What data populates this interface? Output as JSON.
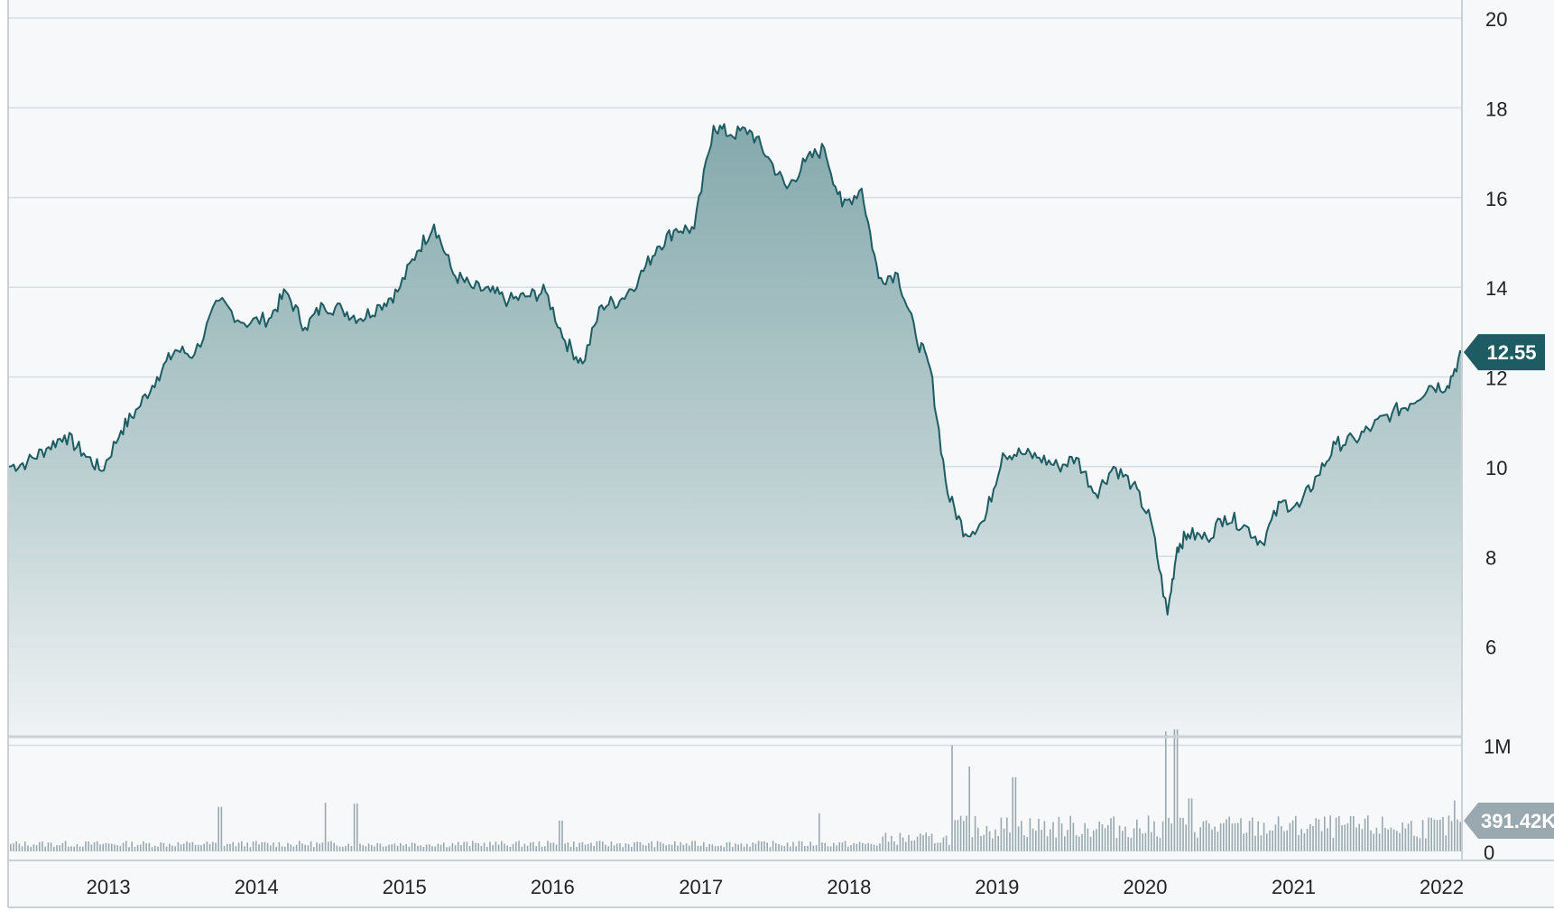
{
  "chart_data": [
    {
      "type": "area",
      "name_hint": "price",
      "title": "",
      "xlabel": "",
      "ylabel": "",
      "ylim": [
        4,
        20
      ],
      "y_ticks": [
        6,
        8,
        10,
        12,
        14,
        16,
        18,
        20
      ],
      "x_ticks": [
        "2013",
        "2014",
        "2015",
        "2016",
        "2017",
        "2018",
        "2019",
        "2020",
        "2021",
        "2022"
      ],
      "x_range": [
        "2012-05-01",
        "2022-02-20"
      ],
      "grid": true,
      "line_color": "#1d5c63",
      "fill_color": "#8fb1b3",
      "last_value_label": "12.55",
      "series": [
        {
          "x": [
            "2012-05-01",
            "2012-06-15",
            "2012-08-01",
            "2012-09-15",
            "2012-11-01",
            "2012-12-15",
            "2013-02-01",
            "2013-03-15",
            "2013-05-01",
            "2013-06-15",
            "2013-08-01",
            "2013-10-01",
            "2013-12-01",
            "2014-02-01",
            "2014-03-15",
            "2014-05-01",
            "2014-06-15",
            "2014-08-01",
            "2014-09-15",
            "2014-11-01",
            "2014-12-15",
            "2015-02-01",
            "2015-03-15",
            "2015-05-01",
            "2015-06-15",
            "2015-08-01",
            "2015-09-15",
            "2015-11-01",
            "2015-12-15",
            "2016-02-01",
            "2016-03-15",
            "2016-05-01",
            "2016-06-15",
            "2016-08-01",
            "2016-09-15",
            "2016-11-01",
            "2016-12-15",
            "2017-02-01",
            "2017-03-15",
            "2017-05-01",
            "2017-06-15",
            "2017-08-01",
            "2017-09-15",
            "2017-11-01",
            "2017-12-15",
            "2018-02-01",
            "2018-03-15",
            "2018-05-01",
            "2018-06-15",
            "2018-07-20",
            "2018-09-01",
            "2018-10-15",
            "2018-12-01",
            "2019-01-15",
            "2019-03-01",
            "2019-04-15",
            "2019-06-01",
            "2019-07-15",
            "2019-09-01",
            "2019-10-15",
            "2019-12-01",
            "2020-01-15",
            "2020-02-25",
            "2020-03-20",
            "2020-04-15",
            "2020-06-01",
            "2020-07-15",
            "2020-09-01",
            "2020-10-15",
            "2020-12-01",
            "2021-01-15",
            "2021-03-01",
            "2021-04-15",
            "2021-06-01",
            "2021-07-15",
            "2021-09-01",
            "2021-10-15",
            "2021-12-01",
            "2022-01-15",
            "2022-02-20"
          ],
          "values": [
            10.0,
            10.1,
            10.4,
            10.7,
            10.3,
            9.9,
            10.8,
            11.3,
            12.0,
            12.6,
            12.5,
            13.7,
            13.2,
            13.3,
            13.9,
            13.1,
            13.6,
            13.5,
            13.3,
            13.6,
            13.9,
            14.8,
            15.4,
            14.3,
            14.0,
            13.9,
            13.7,
            13.8,
            13.9,
            12.8,
            12.3,
            13.6,
            13.7,
            14.2,
            14.9,
            15.3,
            15.3,
            17.6,
            17.4,
            17.5,
            16.9,
            16.2,
            16.8,
            17.1,
            15.8,
            16.2,
            14.2,
            14.3,
            12.9,
            12.2,
            9.4,
            8.5,
            8.8,
            10.3,
            10.3,
            10.2,
            10.0,
            10.2,
            9.4,
            10.0,
            9.6,
            8.8,
            6.7,
            8.2,
            8.5,
            8.4,
            8.9,
            8.7,
            8.3,
            9.2,
            9.1,
            9.8,
            10.5,
            10.6,
            10.9,
            11.2,
            11.4,
            11.8,
            11.8,
            12.55
          ]
        }
      ]
    },
    {
      "type": "bar",
      "name_hint": "volume",
      "title": "",
      "xlabel": "",
      "ylabel": "",
      "ylim": [
        0,
        1200000
      ],
      "y_ticks": [
        "1M",
        "0"
      ],
      "bar_color": "#9aa9b0",
      "last_value_label": "391.42K",
      "series": [
        {
          "x": [
            "2012-05-01",
            "2013-10-01",
            "2014-06-20",
            "2014-09-01",
            "2016-01-20",
            "2017-10-20",
            "2018-09-10",
            "2018-10-25",
            "2019-02-10",
            "2020-02-20",
            "2020-03-15",
            "2020-04-20",
            "2022-01-30",
            "2022-02-20"
          ],
          "values": [
            70000,
            420000,
            460000,
            450000,
            290000,
            360000,
            1000000,
            800000,
            700000,
            1130000,
            1150000,
            500000,
            480000,
            391420
          ]
        }
      ]
    }
  ]
}
